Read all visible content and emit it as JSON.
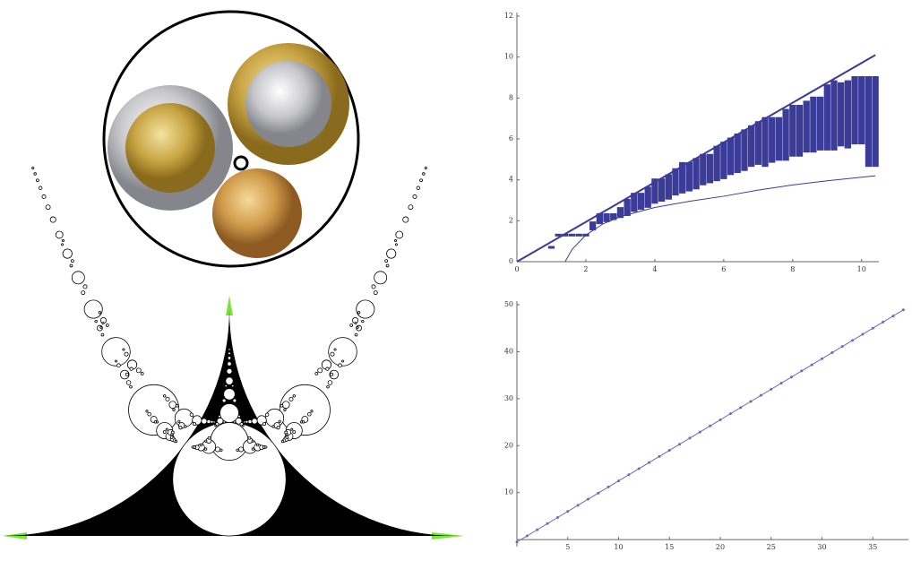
{
  "chart_data": [
    {
      "type": "scatter",
      "color": "#3b3b98",
      "xlim": [
        0,
        10.5
      ],
      "ylim": [
        0,
        12
      ],
      "xticks": [
        0,
        2,
        4,
        6,
        8,
        10
      ],
      "yticks": [
        0,
        2,
        4,
        6,
        8,
        10,
        12
      ],
      "series": [
        {
          "type": "line",
          "x": [
            0,
            10.4
          ],
          "values": [
            0,
            10.1
          ]
        },
        {
          "type": "line",
          "x": [
            1.4,
            1.6,
            2,
            2.5,
            3,
            4,
            5,
            6,
            7,
            8,
            9,
            10.4
          ],
          "values": [
            0,
            0.6,
            1.3,
            1.85,
            2.2,
            2.65,
            2.95,
            3.2,
            3.5,
            3.75,
            3.95,
            4.2
          ]
        },
        {
          "type": "range",
          "x": [
            1.0,
            1.2,
            1.4,
            1.6,
            1.8,
            2.0,
            2.2,
            2.4,
            2.6,
            2.8,
            3.0,
            3.2,
            3.4,
            3.6,
            3.8,
            4.0,
            4.2,
            4.4,
            4.6,
            4.8,
            5.0,
            5.2,
            5.4,
            5.6,
            5.8,
            6.0,
            6.2,
            6.4,
            6.6,
            6.8,
            7.0,
            7.2,
            7.4,
            7.6,
            7.8,
            8.0,
            8.2,
            8.4,
            8.6,
            8.8,
            9.0,
            9.2,
            9.4,
            9.6,
            9.8,
            10.0,
            10.2,
            10.4
          ],
          "high": [
            0.7,
            1.3,
            1.3,
            1.3,
            1.3,
            1.3,
            1.9,
            2.3,
            2.3,
            2.3,
            2.6,
            3.0,
            3.3,
            3.3,
            3.6,
            4.0,
            4.0,
            4.2,
            4.5,
            4.8,
            4.8,
            5.0,
            5.2,
            5.2,
            5.6,
            5.8,
            6.0,
            6.2,
            6.4,
            6.6,
            6.8,
            7.0,
            7.0,
            7.0,
            7.4,
            7.6,
            7.6,
            7.8,
            8.0,
            8.0,
            8.6,
            8.8,
            8.7,
            8.8,
            9.0,
            9.0,
            9.0,
            9.0
          ],
          "low": [
            0.7,
            1.3,
            1.3,
            1.3,
            1.3,
            1.3,
            1.6,
            1.9,
            2.0,
            2.1,
            2.2,
            2.3,
            2.5,
            2.6,
            2.7,
            2.9,
            3.0,
            3.1,
            3.3,
            3.4,
            3.5,
            3.6,
            3.8,
            3.9,
            4.0,
            4.1,
            4.3,
            4.4,
            4.5,
            4.7,
            4.8,
            4.7,
            4.9,
            5.0,
            5.0,
            5.2,
            5.2,
            5.4,
            5.4,
            5.5,
            5.5,
            5.5,
            5.7,
            5.6,
            5.8,
            5.8,
            4.7,
            4.7
          ]
        }
      ]
    },
    {
      "type": "line",
      "color": "#6a6ab8",
      "xlim": [
        0,
        38.5
      ],
      "ylim": [
        -1.5,
        50
      ],
      "xticks": [
        5,
        10,
        15,
        20,
        25,
        30,
        35
      ],
      "yticks": [
        10,
        20,
        30,
        40,
        50
      ],
      "series": [
        {
          "type": "line",
          "x": [
            0,
            1,
            2,
            3,
            4,
            5,
            6,
            7,
            8,
            9,
            10,
            11,
            12,
            13,
            14,
            15,
            16,
            17,
            18,
            19,
            20,
            21,
            22,
            23,
            24,
            25,
            26,
            27,
            28,
            29,
            30,
            31,
            32,
            33,
            34,
            35,
            36,
            37,
            38
          ],
          "values": [
            -0.5,
            0.8,
            2.1,
            3.4,
            4.7,
            6.0,
            7.3,
            8.6,
            9.9,
            11.2,
            12.5,
            13.8,
            15.1,
            16.4,
            17.7,
            19.0,
            20.3,
            21.6,
            22.9,
            24.2,
            25.5,
            26.8,
            28.1,
            29.4,
            30.7,
            32.0,
            33.3,
            34.6,
            35.9,
            37.2,
            38.5,
            39.8,
            41.1,
            42.4,
            43.7,
            45.0,
            46.3,
            47.6,
            48.9
          ]
        }
      ]
    }
  ]
}
